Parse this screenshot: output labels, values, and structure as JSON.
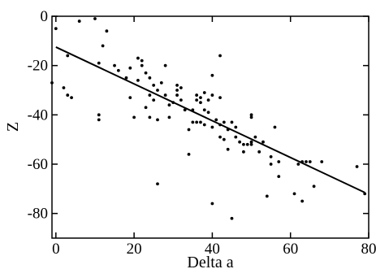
{
  "chart_data": {
    "type": "scatter",
    "title": "",
    "xlabel": "Delta a",
    "ylabel": "Z",
    "xlim": [
      -1,
      80
    ],
    "ylim": [
      -90,
      0
    ],
    "xticks": [
      0,
      20,
      40,
      60,
      80
    ],
    "yticks": [
      0,
      -20,
      -40,
      -60,
      -80
    ],
    "xtick_labels": [
      "0",
      "20",
      "40",
      "60",
      "80"
    ],
    "ytick_labels": [
      "0",
      "-20",
      "-40",
      "-60",
      "-80"
    ],
    "grid": false,
    "legend": "none",
    "colors": {
      "points": "#000000",
      "line": "#000000",
      "background": "#ffffff"
    },
    "series": [
      {
        "kind": "points",
        "points": [
          [
            -1,
            -27
          ],
          [
            0,
            -5
          ],
          [
            2,
            -29
          ],
          [
            3,
            -16
          ],
          [
            3,
            -32
          ],
          [
            4,
            -33
          ],
          [
            6,
            -2
          ],
          [
            10,
            -1
          ],
          [
            11,
            -19
          ],
          [
            11,
            -40
          ],
          [
            11,
            -42
          ],
          [
            12,
            -12
          ],
          [
            13,
            -6
          ],
          [
            15,
            -20
          ],
          [
            16,
            -22
          ],
          [
            18,
            -25
          ],
          [
            19,
            -21
          ],
          [
            19,
            -33
          ],
          [
            20,
            -41
          ],
          [
            21,
            -17
          ],
          [
            21,
            -26
          ],
          [
            22,
            -20
          ],
          [
            22,
            -18
          ],
          [
            23,
            -23
          ],
          [
            23,
            -37
          ],
          [
            24,
            -25
          ],
          [
            24,
            -32
          ],
          [
            24,
            -41
          ],
          [
            25,
            -28
          ],
          [
            25,
            -34
          ],
          [
            26,
            -30
          ],
          [
            26,
            -42
          ],
          [
            26,
            -68
          ],
          [
            27,
            -27
          ],
          [
            28,
            -20
          ],
          [
            28,
            -32
          ],
          [
            29,
            -36
          ],
          [
            29,
            -41
          ],
          [
            30,
            -35
          ],
          [
            31,
            -28
          ],
          [
            31,
            -30
          ],
          [
            31,
            -32
          ],
          [
            32,
            -29
          ],
          [
            32,
            -34
          ],
          [
            33,
            -38
          ],
          [
            34,
            -46
          ],
          [
            34,
            -56
          ],
          [
            35,
            -38
          ],
          [
            35,
            -43
          ],
          [
            36,
            -32
          ],
          [
            36,
            -34
          ],
          [
            36,
            -43
          ],
          [
            37,
            -33
          ],
          [
            37,
            -35
          ],
          [
            37,
            -43
          ],
          [
            38,
            -31
          ],
          [
            38,
            -38
          ],
          [
            38,
            -44
          ],
          [
            39,
            -34
          ],
          [
            39,
            -39
          ],
          [
            40,
            -24
          ],
          [
            40,
            -32
          ],
          [
            40,
            -45
          ],
          [
            40,
            -76
          ],
          [
            41,
            -42
          ],
          [
            42,
            -16
          ],
          [
            42,
            -33
          ],
          [
            42,
            -44
          ],
          [
            42,
            -49
          ],
          [
            43,
            -50
          ],
          [
            43,
            -43
          ],
          [
            44,
            -46
          ],
          [
            44,
            -54
          ],
          [
            45,
            -43
          ],
          [
            45,
            -82
          ],
          [
            46,
            -45
          ],
          [
            46,
            -49
          ],
          [
            47,
            -51
          ],
          [
            48,
            -52
          ],
          [
            48,
            -55
          ],
          [
            49,
            -52
          ],
          [
            50,
            -40
          ],
          [
            50,
            -41
          ],
          [
            50,
            -51
          ],
          [
            50,
            -52
          ],
          [
            51,
            -49
          ],
          [
            52,
            -55
          ],
          [
            53,
            -51
          ],
          [
            54,
            -73
          ],
          [
            55,
            -57
          ],
          [
            55,
            -60
          ],
          [
            56,
            -45
          ],
          [
            57,
            -59
          ],
          [
            57,
            -65
          ],
          [
            61,
            -72
          ],
          [
            62,
            -60
          ],
          [
            63,
            -75
          ],
          [
            63,
            -59
          ],
          [
            64,
            -59
          ],
          [
            65,
            -59
          ],
          [
            66,
            -69
          ],
          [
            68,
            -59
          ],
          [
            77,
            -61
          ],
          [
            79,
            -72
          ]
        ]
      },
      {
        "kind": "fit-line",
        "points": [
          [
            0,
            -12.5
          ],
          [
            79,
            -71.5
          ]
        ]
      }
    ]
  }
}
